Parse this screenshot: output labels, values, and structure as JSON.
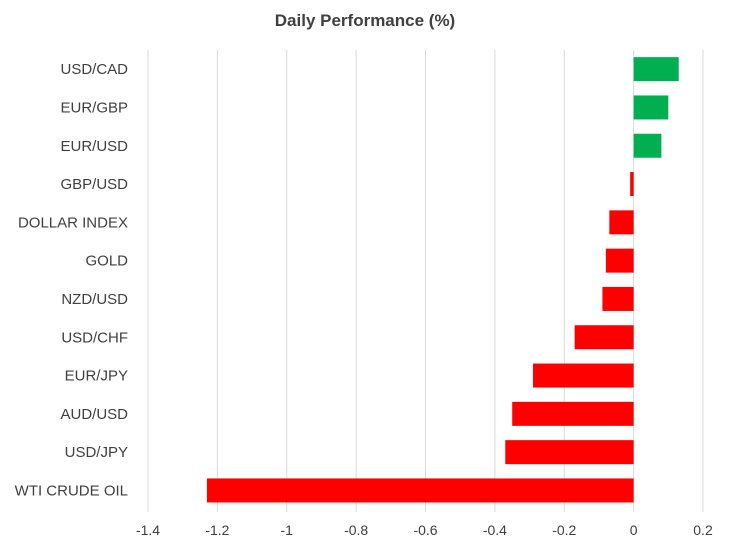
{
  "chart_data": {
    "type": "bar",
    "orientation": "horizontal",
    "title": "Daily Performance (%)",
    "xlabel": "",
    "ylabel": "",
    "categories": [
      "USD/CAD",
      "EUR/GBP",
      "EUR/USD",
      "GBP/USD",
      "DOLLAR INDEX",
      "GOLD",
      "NZD/USD",
      "USD/CHF",
      "EUR/JPY",
      "AUD/USD",
      "USD/JPY",
      "WTI CRUDE OIL"
    ],
    "values": [
      0.13,
      0.1,
      0.08,
      -0.01,
      -0.07,
      -0.08,
      -0.09,
      -0.17,
      -0.29,
      -0.35,
      -0.37,
      -1.23
    ],
    "xlim": [
      -1.4,
      0.2
    ],
    "xticks": [
      -1.4,
      -1.2,
      -1,
      -0.8,
      -0.6,
      -0.4,
      -0.2,
      0,
      0.2
    ],
    "xtick_labels": [
      "-1.4",
      "-1.2",
      "-1",
      "-0.8",
      "-0.6",
      "-0.4",
      "-0.2",
      "0",
      "0.2"
    ],
    "grid": "vertical",
    "legend": "none",
    "colors": {
      "positive": "#00B050",
      "negative": "#FF0000",
      "grid": "#D9D9D9",
      "text": "#404040"
    }
  }
}
